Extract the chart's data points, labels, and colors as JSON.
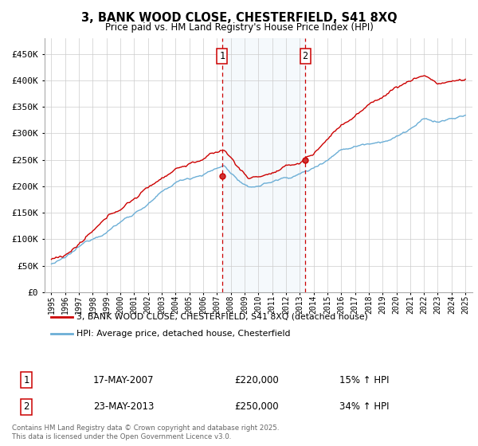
{
  "title": "3, BANK WOOD CLOSE, CHESTERFIELD, S41 8XQ",
  "subtitle": "Price paid vs. HM Land Registry's House Price Index (HPI)",
  "legend_line1": "3, BANK WOOD CLOSE, CHESTERFIELD, S41 8XQ (detached house)",
  "legend_line2": "HPI: Average price, detached house, Chesterfield",
  "annotation1_date": "17-MAY-2007",
  "annotation1_price": "£220,000",
  "annotation1_hpi": "15% ↑ HPI",
  "annotation2_date": "23-MAY-2013",
  "annotation2_price": "£250,000",
  "annotation2_hpi": "34% ↑ HPI",
  "footnote": "Contains HM Land Registry data © Crown copyright and database right 2025.\nThis data is licensed under the Open Government Licence v3.0.",
  "hpi_color": "#6baed6",
  "price_color": "#cc0000",
  "sale1_x": 2007.38,
  "sale1_y": 220000,
  "sale2_x": 2013.39,
  "sale2_y": 250000,
  "vline1_x": 2007.38,
  "vline2_x": 2013.39,
  "shade_start": 2007.38,
  "shade_end": 2013.39,
  "ylim": [
    0,
    480000
  ],
  "xlim": [
    1994.5,
    2025.5
  ],
  "yticks": [
    0,
    50000,
    100000,
    150000,
    200000,
    250000,
    300000,
    350000,
    400000,
    450000
  ],
  "background_color": "#ffffff",
  "grid_color": "#cccccc"
}
